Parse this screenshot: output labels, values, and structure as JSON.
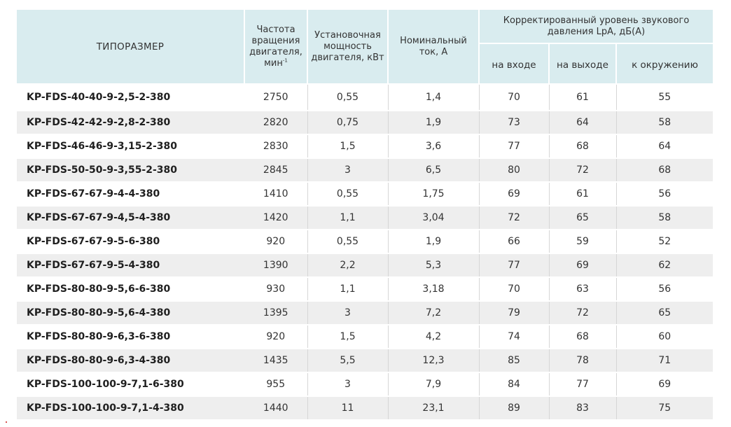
{
  "header": {
    "size": "ТИПОРАЗМЕР",
    "rpm": "Частота вращения двигателя, мин",
    "rpm_exp": "-1",
    "power": "Установочная мощность двигателя, кВт",
    "current": "Номинальный ток, А",
    "noise_group": "Корректированный уровень звукового давления LpA, дБ(А)",
    "noise_in": "на входе",
    "noise_out": "на выходе",
    "noise_env": "к окружению"
  },
  "rows": [
    {
      "model": "KP-FDS-40-40-9-2,5-2-380",
      "rpm": "2750",
      "power": "0,55",
      "current": "1,4",
      "in": "70",
      "out": "61",
      "env": "55"
    },
    {
      "model": "KP-FDS-42-42-9-2,8-2-380",
      "rpm": "2820",
      "power": "0,75",
      "current": "1,9",
      "in": "73",
      "out": "64",
      "env": "58"
    },
    {
      "model": "KP-FDS-46-46-9-3,15-2-380",
      "rpm": "2830",
      "power": "1,5",
      "current": "3,6",
      "in": "77",
      "out": "68",
      "env": "64"
    },
    {
      "model": "KP-FDS-50-50-9-3,55-2-380",
      "rpm": "2845",
      "power": "3",
      "current": "6,5",
      "in": "80",
      "out": "72",
      "env": "68"
    },
    {
      "model": "KP-FDS-67-67-9-4-4-380",
      "rpm": "1410",
      "power": "0,55",
      "current": "1,75",
      "in": "69",
      "out": "61",
      "env": "56"
    },
    {
      "model": "KP-FDS-67-67-9-4,5-4-380",
      "rpm": "1420",
      "power": "1,1",
      "current": "3,04",
      "in": "72",
      "out": "65",
      "env": "58"
    },
    {
      "model": "KP-FDS-67-67-9-5-6-380",
      "rpm": "920",
      "power": "0,55",
      "current": "1,9",
      "in": "66",
      "out": "59",
      "env": "52"
    },
    {
      "model": "KP-FDS-67-67-9-5-4-380",
      "rpm": "1390",
      "power": "2,2",
      "current": "5,3",
      "in": "77",
      "out": "69",
      "env": "62"
    },
    {
      "model": "KP-FDS-80-80-9-5,6-6-380",
      "rpm": "930",
      "power": "1,1",
      "current": "3,18",
      "in": "70",
      "out": "63",
      "env": "56"
    },
    {
      "model": "KP-FDS-80-80-9-5,6-4-380",
      "rpm": "1395",
      "power": "3",
      "current": "7,2",
      "in": "79",
      "out": "72",
      "env": "65"
    },
    {
      "model": "KP-FDS-80-80-9-6,3-6-380",
      "rpm": "920",
      "power": "1,5",
      "current": "4,2",
      "in": "74",
      "out": "68",
      "env": "60"
    },
    {
      "model": "KP-FDS-80-80-9-6,3-4-380",
      "rpm": "1435",
      "power": "5,5",
      "current": "12,3",
      "in": "85",
      "out": "78",
      "env": "71"
    },
    {
      "model": "KP-FDS-100-100-9-7,1-6-380",
      "rpm": "955",
      "power": "3",
      "current": "7,9",
      "in": "84",
      "out": "77",
      "env": "69"
    },
    {
      "model": "KP-FDS-100-100-9-7,1-4-380",
      "rpm": "1440",
      "power": "11",
      "current": "23,1",
      "in": "89",
      "out": "83",
      "env": "75"
    }
  ],
  "colors": {
    "header_bg": "#d9ecef",
    "alt_row_bg": "#eeeeee"
  }
}
